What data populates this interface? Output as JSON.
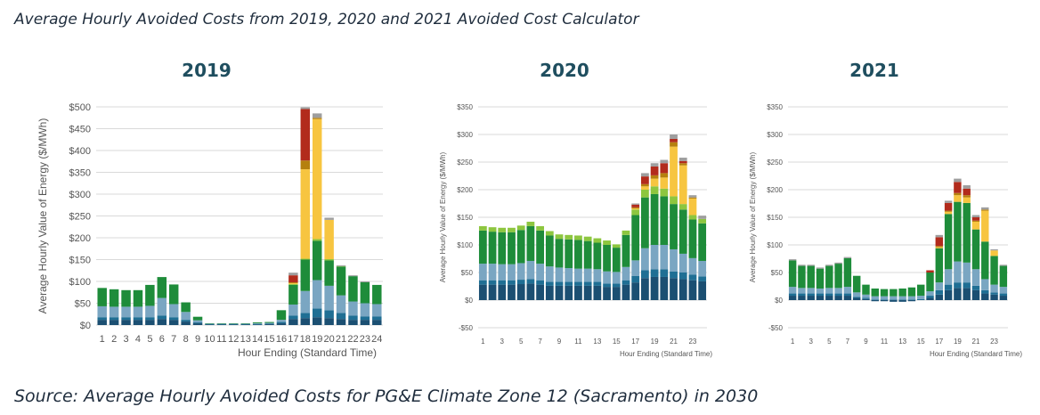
{
  "header": {
    "caption": "Average Hourly Avoided Costs from 2019, 2020 and 2021 Avoided Cost Calculator"
  },
  "footer": {
    "caption": "Source: Average Hourly Avoided Costs for PG&E Climate Zone 12 (Sacramento) in 2030"
  },
  "series_colors": [
    "#1b4f72",
    "#1f6f94",
    "#7aa6c2",
    "#1e8c3a",
    "#8dc63f",
    "#f7c540",
    "#b5800e",
    "#b22b1c",
    "#9e9e9e"
  ],
  "chart_data": [
    {
      "type": "bar",
      "stacked": true,
      "title": "2019",
      "xlabel": "Hour Ending (Standard Time)",
      "ylabel": "Average Hourly Value of Energy ($/MWh)",
      "ylim": [
        0,
        500
      ],
      "yticks": [
        0,
        50,
        100,
        150,
        200,
        250,
        300,
        350,
        400,
        450,
        500
      ],
      "ytick_labels": [
        "$0",
        "$50",
        "$100",
        "$150",
        "$200",
        "$250",
        "$300",
        "$350",
        "$400",
        "$450",
        "$500"
      ],
      "categories": [
        "1",
        "2",
        "3",
        "4",
        "5",
        "6",
        "7",
        "8",
        "9",
        "10",
        "11",
        "12",
        "13",
        "14",
        "15",
        "16",
        "17",
        "18",
        "19",
        "20",
        "21",
        "22",
        "23",
        "24"
      ],
      "x_tick_labels": [
        "1",
        "2",
        "3",
        "4",
        "5",
        "6",
        "7",
        "8",
        "9",
        "10",
        "11",
        "12",
        "13",
        "14",
        "15",
        "16",
        "17",
        "18",
        "19",
        "20",
        "21",
        "22",
        "23",
        "24"
      ],
      "grid": true,
      "series": [
        {
          "values": [
            12,
            12,
            12,
            12,
            12,
            14,
            12,
            8,
            4,
            1,
            1,
            1,
            1,
            1,
            2,
            4,
            14,
            16,
            18,
            16,
            14,
            12,
            12,
            12
          ]
        },
        {
          "values": [
            6,
            6,
            6,
            6,
            6,
            8,
            6,
            4,
            2,
            1,
            1,
            1,
            1,
            1,
            1,
            3,
            8,
            12,
            20,
            18,
            14,
            10,
            8,
            8
          ]
        },
        {
          "values": [
            25,
            24,
            24,
            24,
            26,
            40,
            30,
            18,
            5,
            1,
            1,
            1,
            1,
            2,
            2,
            5,
            25,
            50,
            65,
            56,
            40,
            32,
            30,
            28
          ]
        },
        {
          "values": [
            42,
            40,
            38,
            38,
            48,
            48,
            45,
            22,
            8,
            1,
            1,
            1,
            1,
            2,
            2,
            22,
            45,
            72,
            90,
            58,
            66,
            58,
            48,
            44
          ]
        },
        {
          "values": [
            0,
            0,
            0,
            0,
            0,
            0,
            0,
            0,
            0,
            0,
            0,
            0,
            0,
            0,
            0,
            0,
            2,
            2,
            4,
            3,
            1,
            0,
            0,
            0
          ]
        },
        {
          "values": [
            0,
            0,
            0,
            0,
            0,
            0,
            0,
            0,
            0,
            0,
            0,
            0,
            0,
            0,
            0,
            0,
            2,
            205,
            275,
            90,
            0,
            0,
            0,
            0
          ]
        },
        {
          "values": [
            0,
            0,
            0,
            0,
            0,
            0,
            0,
            0,
            0,
            0,
            0,
            0,
            0,
            0,
            0,
            0,
            2,
            20,
            3,
            0,
            0,
            0,
            0,
            0
          ]
        },
        {
          "values": [
            0,
            0,
            0,
            0,
            0,
            0,
            0,
            0,
            0,
            0,
            0,
            0,
            0,
            0,
            0,
            0,
            16,
            118,
            0,
            0,
            0,
            0,
            0,
            0
          ]
        },
        {
          "values": [
            0,
            0,
            0,
            0,
            0,
            0,
            0,
            0,
            0,
            0,
            0,
            0,
            0,
            0,
            0,
            0,
            6,
            4,
            10,
            5,
            2,
            2,
            2,
            0
          ]
        }
      ]
    },
    {
      "type": "bar",
      "stacked": true,
      "title": "2020",
      "xlabel": "Hour Ending (Standard Time)",
      "ylabel": "Average Hourly Value of Energy ($/MWh)",
      "ylim": [
        -50,
        350
      ],
      "yticks": [
        -50,
        0,
        50,
        100,
        150,
        200,
        250,
        300,
        350
      ],
      "ytick_labels": [
        "-$50",
        "$0",
        "$50",
        "$100",
        "$150",
        "$200",
        "$250",
        "$300",
        "$350"
      ],
      "categories": [
        "1",
        "2",
        "3",
        "4",
        "5",
        "6",
        "7",
        "8",
        "9",
        "10",
        "11",
        "12",
        "13",
        "14",
        "15",
        "16",
        "17",
        "18",
        "19",
        "20",
        "21",
        "22",
        "23",
        "24"
      ],
      "x_tick_labels": [
        "1",
        "",
        "3",
        "",
        "5",
        "",
        "7",
        "",
        "9",
        "",
        "11",
        "",
        "13",
        "",
        "15",
        "",
        "17",
        "",
        "19",
        "",
        "21",
        "",
        "23",
        ""
      ],
      "grid": true,
      "series": [
        {
          "values": [
            28,
            28,
            28,
            28,
            29,
            30,
            28,
            26,
            26,
            26,
            26,
            26,
            26,
            24,
            24,
            28,
            32,
            40,
            42,
            42,
            40,
            38,
            36,
            34
          ]
        },
        {
          "values": [
            8,
            8,
            8,
            8,
            8,
            8,
            8,
            7,
            7,
            7,
            7,
            7,
            7,
            6,
            6,
            8,
            12,
            14,
            14,
            14,
            12,
            12,
            10,
            9
          ]
        },
        {
          "values": [
            30,
            30,
            29,
            29,
            30,
            33,
            30,
            28,
            26,
            25,
            24,
            24,
            23,
            22,
            21,
            24,
            28,
            40,
            44,
            44,
            40,
            34,
            30,
            28
          ]
        },
        {
          "values": [
            60,
            58,
            58,
            58,
            60,
            63,
            60,
            56,
            52,
            52,
            52,
            50,
            48,
            48,
            44,
            58,
            82,
            92,
            92,
            88,
            82,
            80,
            70,
            68
          ]
        },
        {
          "values": [
            8,
            8,
            8,
            8,
            8,
            8,
            8,
            8,
            8,
            8,
            8,
            8,
            8,
            8,
            6,
            8,
            10,
            14,
            14,
            14,
            14,
            10,
            8,
            8
          ]
        },
        {
          "values": [
            0,
            0,
            0,
            0,
            0,
            0,
            0,
            0,
            0,
            0,
            0,
            0,
            0,
            0,
            0,
            0,
            2,
            6,
            14,
            20,
            90,
            70,
            30,
            0
          ]
        },
        {
          "values": [
            0,
            0,
            0,
            0,
            0,
            0,
            0,
            0,
            0,
            0,
            0,
            0,
            0,
            0,
            0,
            0,
            2,
            4,
            6,
            8,
            8,
            4,
            2,
            0
          ]
        },
        {
          "values": [
            0,
            0,
            0,
            0,
            0,
            0,
            0,
            0,
            0,
            0,
            0,
            0,
            0,
            0,
            0,
            0,
            5,
            14,
            16,
            18,
            6,
            4,
            0,
            0
          ]
        },
        {
          "values": [
            0,
            0,
            0,
            0,
            0,
            0,
            0,
            0,
            0,
            0,
            0,
            0,
            0,
            0,
            0,
            0,
            2,
            6,
            6,
            6,
            8,
            6,
            4,
            6
          ]
        }
      ]
    },
    {
      "type": "bar",
      "stacked": true,
      "title": "2021",
      "xlabel": "Hour Ending (Standard Time)",
      "ylabel": "Average Hourly Value of Energy ($/MWh)",
      "ylim": [
        -50,
        350
      ],
      "yticks": [
        -50,
        0,
        50,
        100,
        150,
        200,
        250,
        300,
        350
      ],
      "ytick_labels": [
        "-$50",
        "$0",
        "$50",
        "$100",
        "$150",
        "$200",
        "$250",
        "$300",
        "$350"
      ],
      "categories": [
        "1",
        "2",
        "3",
        "4",
        "5",
        "6",
        "7",
        "8",
        "9",
        "10",
        "11",
        "12",
        "13",
        "14",
        "15",
        "16",
        "17",
        "18",
        "19",
        "20",
        "21",
        "22",
        "23",
        "24"
      ],
      "x_tick_labels": [
        "1",
        "",
        "3",
        "",
        "5",
        "",
        "7",
        "",
        "9",
        "",
        "11",
        "",
        "13",
        "",
        "15",
        "",
        "17",
        "",
        "19",
        "",
        "21",
        "",
        "23",
        ""
      ],
      "grid": true,
      "series": [
        {
          "values": [
            8,
            8,
            8,
            8,
            8,
            8,
            8,
            4,
            2,
            -2,
            -2,
            -3,
            -3,
            -2,
            0,
            4,
            10,
            18,
            22,
            22,
            18,
            12,
            10,
            8
          ]
        },
        {
          "values": [
            4,
            4,
            4,
            4,
            4,
            4,
            4,
            2,
            2,
            1,
            1,
            1,
            1,
            1,
            2,
            4,
            8,
            10,
            10,
            10,
            8,
            6,
            4,
            4
          ]
        },
        {
          "values": [
            12,
            10,
            10,
            9,
            10,
            10,
            12,
            8,
            6,
            6,
            6,
            6,
            6,
            6,
            6,
            8,
            14,
            28,
            38,
            36,
            30,
            20,
            14,
            12
          ]
        },
        {
          "values": [
            48,
            40,
            40,
            36,
            40,
            44,
            52,
            30,
            18,
            14,
            13,
            13,
            14,
            16,
            20,
            34,
            62,
            100,
            108,
            108,
            72,
            68,
            52,
            38
          ]
        },
        {
          "values": [
            0,
            0,
            0,
            0,
            0,
            0,
            0,
            0,
            0,
            0,
            0,
            0,
            0,
            0,
            0,
            0,
            0,
            0,
            0,
            0,
            0,
            0,
            0,
            0
          ]
        },
        {
          "values": [
            0,
            0,
            0,
            0,
            0,
            0,
            0,
            0,
            0,
            0,
            0,
            0,
            0,
            0,
            0,
            0,
            2,
            4,
            12,
            10,
            14,
            56,
            10,
            0
          ]
        },
        {
          "values": [
            0,
            0,
            0,
            0,
            0,
            0,
            0,
            0,
            0,
            0,
            0,
            0,
            0,
            0,
            0,
            0,
            2,
            2,
            4,
            4,
            2,
            2,
            0,
            0
          ]
        },
        {
          "values": [
            0,
            0,
            0,
            0,
            0,
            0,
            0,
            0,
            0,
            0,
            0,
            0,
            0,
            0,
            0,
            4,
            16,
            14,
            20,
            12,
            6,
            0,
            0,
            0
          ]
        },
        {
          "values": [
            2,
            2,
            2,
            2,
            2,
            2,
            2,
            0,
            0,
            0,
            0,
            0,
            0,
            0,
            0,
            0,
            4,
            4,
            6,
            6,
            4,
            4,
            2,
            2
          ]
        }
      ]
    }
  ]
}
